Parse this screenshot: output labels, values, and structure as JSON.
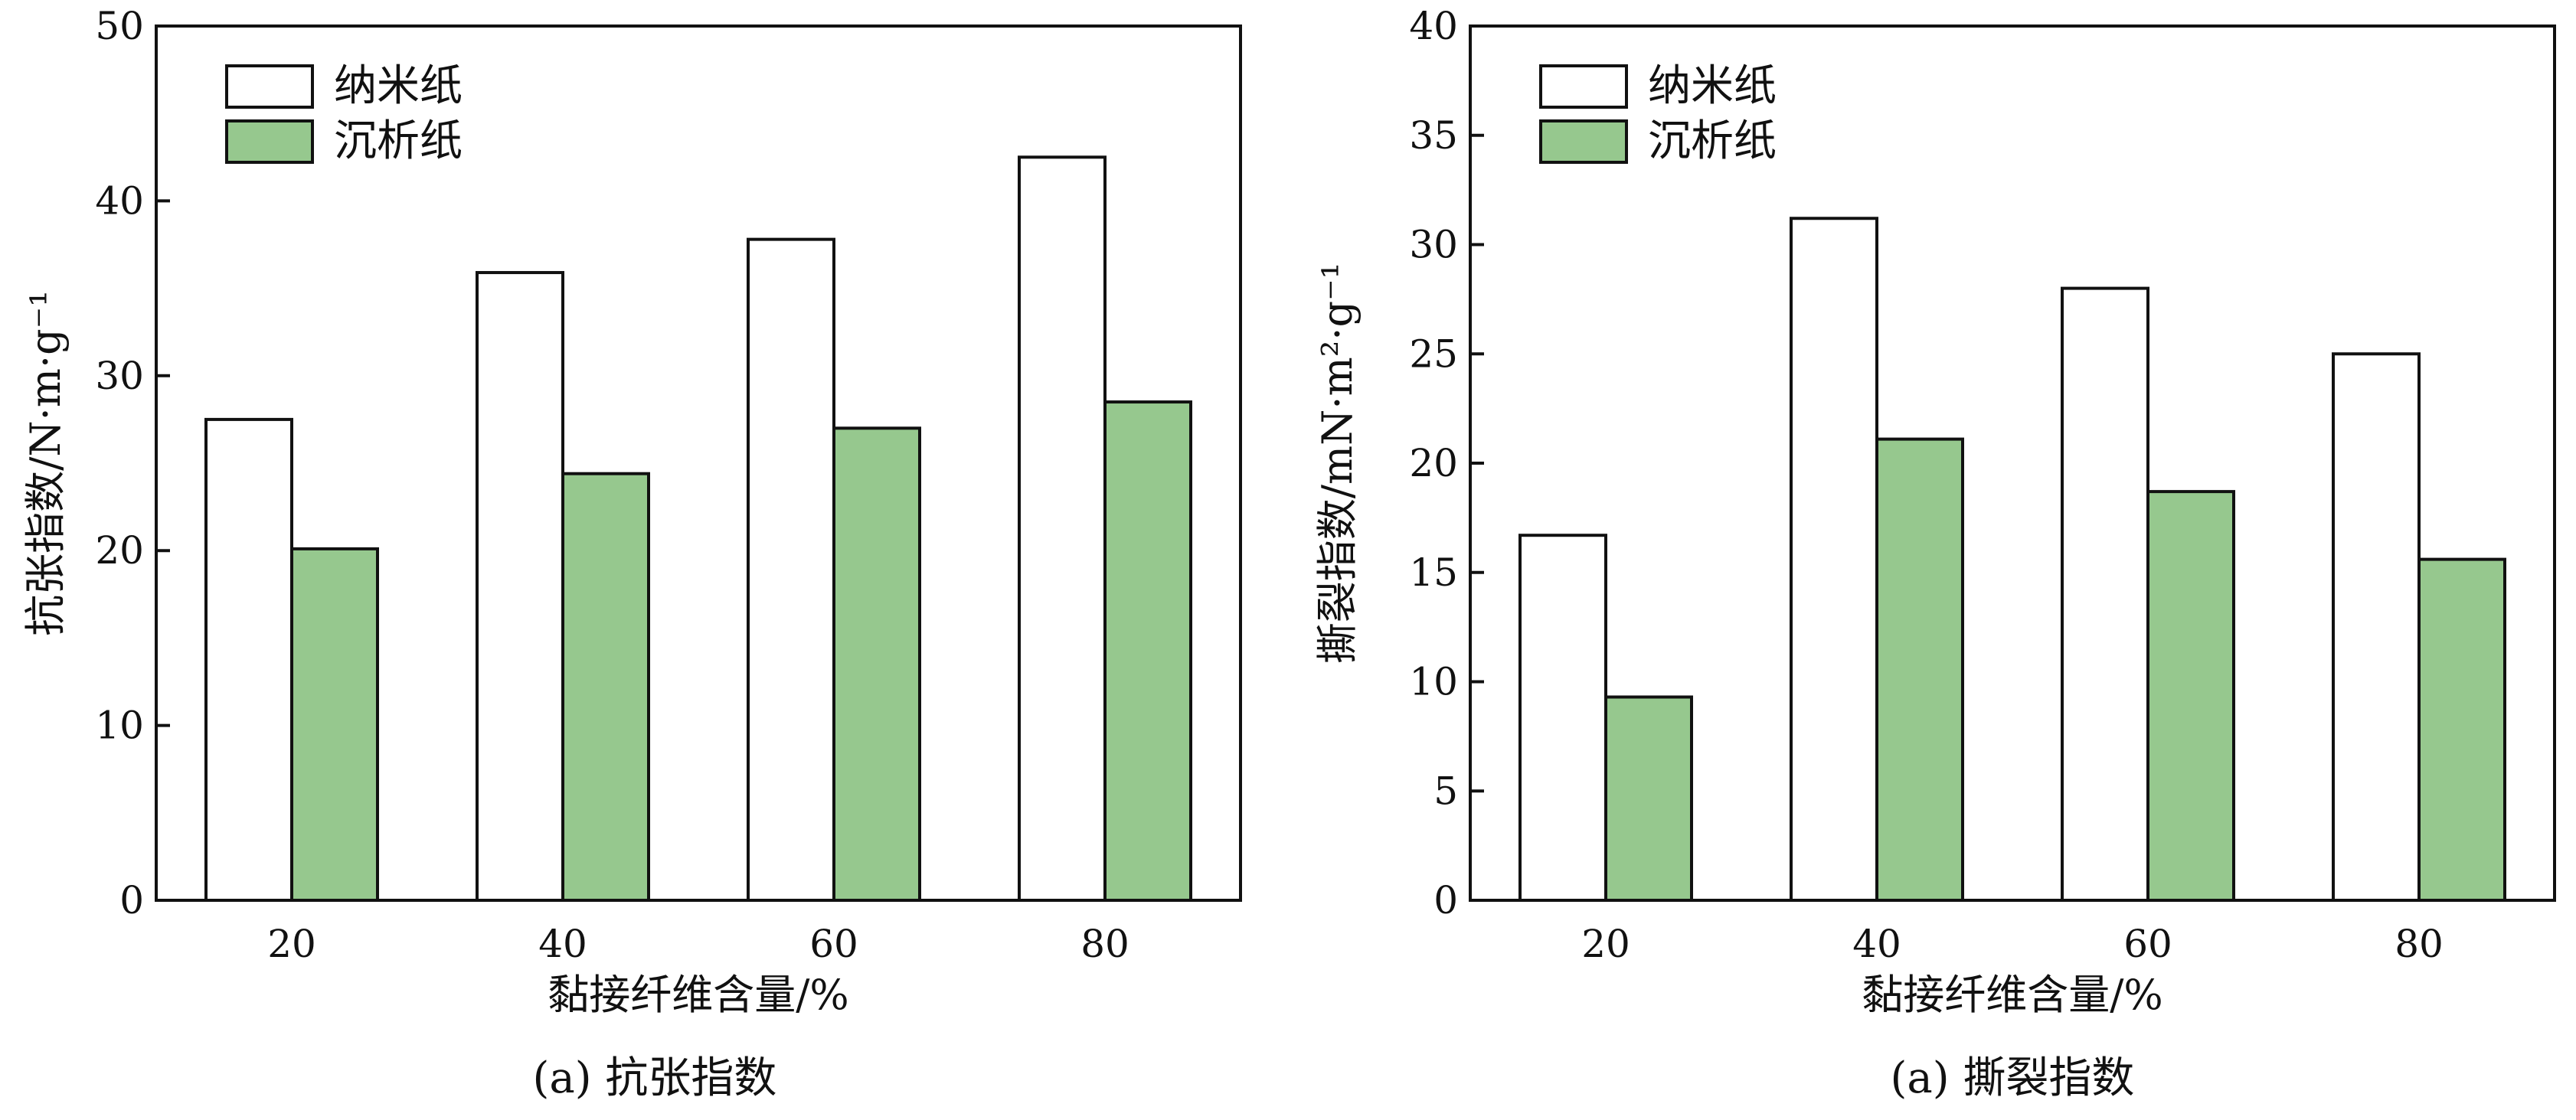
{
  "chart_data": [
    {
      "type": "bar",
      "title": "",
      "caption": "(a) 抗张指数",
      "xlabel": "黏接纤维含量/%",
      "ylabel": "抗张指数/N·m·g⁻¹",
      "categories": [
        "20",
        "40",
        "60",
        "80"
      ],
      "series": [
        {
          "name": "纳米纸",
          "values": [
            27.5,
            35.9,
            37.8,
            42.5
          ],
          "color": "#ffffff"
        },
        {
          "name": "沉析纸",
          "values": [
            20.1,
            24.4,
            27.0,
            28.5
          ],
          "color": "#96c88e"
        }
      ],
      "ylim": [
        0,
        50
      ],
      "yticks": [
        "0",
        "10",
        "20",
        "30",
        "40",
        "50"
      ],
      "yticks_values": [
        0,
        10,
        20,
        30,
        40,
        50
      ],
      "grid": false,
      "legend_position": "top-left"
    },
    {
      "type": "bar",
      "title": "",
      "caption": "(a) 撕裂指数",
      "xlabel": "黏接纤维含量/%",
      "ylabel": "撕裂指数/mN·m²·g⁻¹",
      "categories": [
        "20",
        "40",
        "60",
        "80"
      ],
      "series": [
        {
          "name": "纳米纸",
          "values": [
            16.7,
            31.2,
            28.0,
            25.0
          ],
          "color": "#ffffff"
        },
        {
          "name": "沉析纸",
          "values": [
            9.3,
            21.1,
            18.7,
            15.6
          ],
          "color": "#96c88e"
        }
      ],
      "ylim": [
        0,
        40
      ],
      "yticks": [
        "0",
        "5",
        "10",
        "15",
        "20",
        "25",
        "30",
        "35",
        "40"
      ],
      "yticks_values": [
        0,
        5,
        10,
        15,
        20,
        25,
        30,
        35,
        40
      ],
      "grid": false,
      "legend_position": "top-left"
    }
  ]
}
